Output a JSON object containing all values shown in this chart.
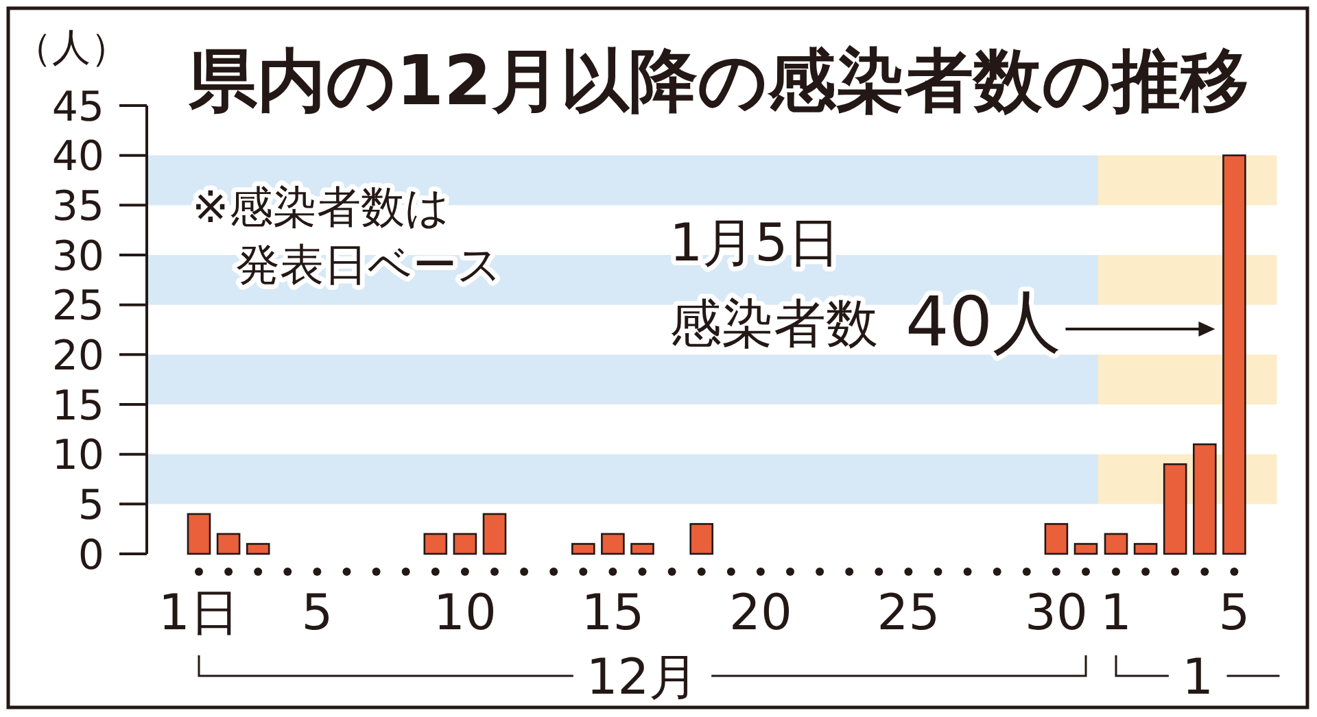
{
  "chart_data": [
    {
      "type": "bar",
      "title": "県内の12月以降の感染者数の推移",
      "ylabel": "（人）",
      "xlabel": "12月",
      "categories": [
        "1日",
        null,
        null,
        null,
        "5",
        null,
        null,
        null,
        null,
        "10",
        null,
        null,
        null,
        null,
        "15",
        null,
        null,
        null,
        null,
        "20",
        null,
        null,
        null,
        null,
        "25",
        null,
        null,
        null,
        null,
        "30",
        null
      ],
      "values": [
        4,
        2,
        1,
        0,
        0,
        0,
        0,
        0,
        2,
        2,
        4,
        0,
        0,
        1,
        2,
        1,
        0,
        3,
        0,
        0,
        0,
        0,
        0,
        0,
        0,
        0,
        0,
        0,
        0,
        3,
        1
      ],
      "color": "#e9603b",
      "ylim": [
        0,
        45
      ],
      "yticks": [
        0,
        5,
        10,
        15,
        20,
        25,
        30,
        35,
        40,
        45
      ],
      "bands": [
        {
          "axis": "y",
          "from": 5,
          "to": 10,
          "color": "#d7e8f6"
        },
        {
          "axis": "y",
          "from": 15,
          "to": 20,
          "color": "#d7e8f6"
        },
        {
          "axis": "y",
          "from": 25,
          "to": 30,
          "color": "#d7e8f6"
        },
        {
          "axis": "y",
          "from": 35,
          "to": 40,
          "color": "#d7e8f6"
        }
      ],
      "annotations": [
        "※感染者数は発表日ベース"
      ]
    },
    {
      "type": "bar",
      "xlabel": "1",
      "categories": [
        "1",
        null,
        null,
        null,
        "5"
      ],
      "values": [
        2,
        1,
        9,
        11,
        40
      ],
      "color": "#e9603b",
      "ylim": [
        0,
        45
      ],
      "tick_labels": "x",
      "bands": [
        {
          "axis": "y",
          "from": 5,
          "to": 10,
          "color": "#fdecc8"
        },
        {
          "axis": "y",
          "from": 15,
          "to": 20,
          "color": "#fdecc8"
        },
        {
          "axis": "y",
          "from": 25,
          "to": 30,
          "color": "#fdecc8"
        },
        {
          "axis": "y",
          "from": 35,
          "to": 40,
          "color": "#fdecc8"
        }
      ],
      "annotations": [
        "1月5日感染者数",
        "40人"
      ]
    }
  ]
}
